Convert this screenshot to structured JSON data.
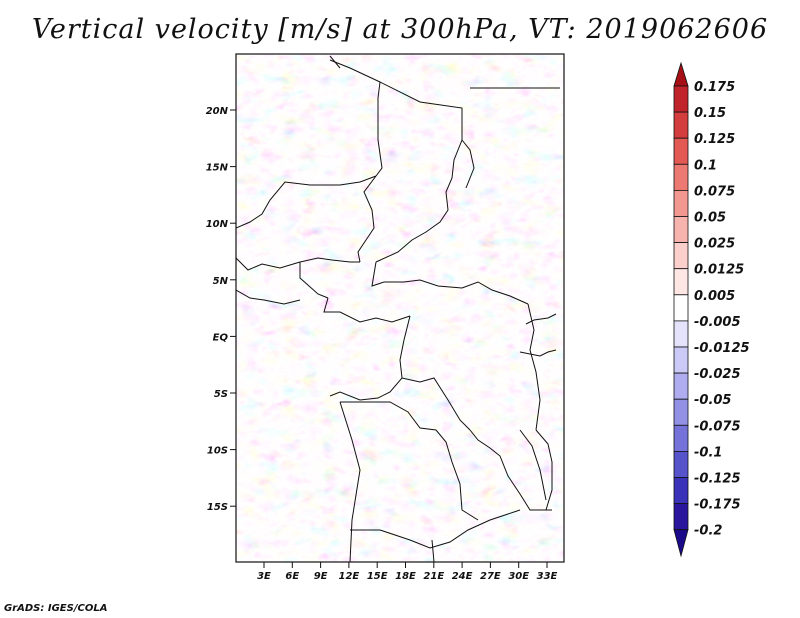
{
  "title": "Vertical velocity [m/s] at 300hPa, VT: 2019062606",
  "credit": "GrADS: IGES/COLA",
  "map": {
    "lat_ticks": [
      "20N",
      "15N",
      "10N",
      "5N",
      "EQ",
      "5S",
      "10S",
      "15S"
    ],
    "lon_ticks": [
      "3E",
      "6E",
      "9E",
      "12E",
      "15E",
      "18E",
      "21E",
      "24E",
      "27E",
      "30E",
      "33E"
    ]
  },
  "colorbar": {
    "labels": [
      "0.175",
      "0.15",
      "0.125",
      "0.1",
      "0.075",
      "0.05",
      "0.025",
      "0.0125",
      "0.005",
      "-0.005",
      "-0.0125",
      "-0.025",
      "-0.05",
      "-0.075",
      "-0.1",
      "-0.125",
      "-0.175",
      "-0.2"
    ],
    "colors": [
      "#a50f15",
      "#c0232a",
      "#d43d3d",
      "#e35a55",
      "#ec7a72",
      "#f39891",
      "#f7b3ae",
      "#fbcfcb",
      "#fde6e4",
      "#ffffff",
      "#e4e3fb",
      "#cbc9f6",
      "#afadef",
      "#9391e6",
      "#7573da",
      "#5753cb",
      "#3a32b8",
      "#2a169c",
      "#1b0a8a"
    ]
  }
}
